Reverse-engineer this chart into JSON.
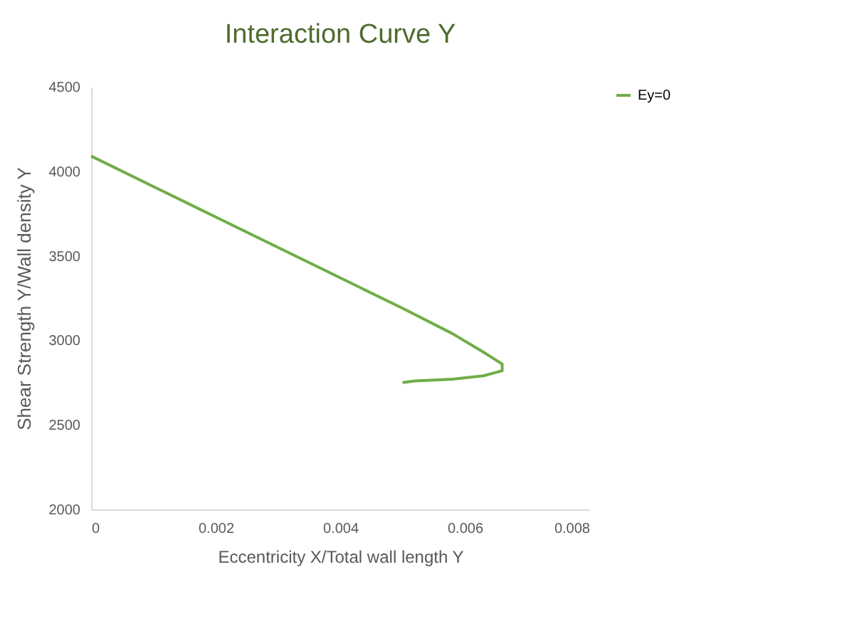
{
  "chart_data": {
    "type": "line",
    "title": "Interaction Curve Y",
    "xlabel": "Eccentricity X/Total wall length Y",
    "ylabel": "Shear Strength Y/Wall density  Y",
    "series": [
      {
        "name": "Ey=0",
        "color": "#70ad47",
        "x": [
          0,
          0.001,
          0.002,
          0.003,
          0.004,
          0.005,
          0.0058,
          0.0063,
          0.0066,
          0.0066,
          0.0063,
          0.0058,
          0.0052,
          0.005
        ],
        "values": [
          4090,
          3910,
          3730,
          3550,
          3370,
          3190,
          3040,
          2930,
          2860,
          2820,
          2790,
          2770,
          2760,
          2750
        ]
      }
    ],
    "xlim": [
      0,
      0.008
    ],
    "xticks": [
      0,
      0.002,
      0.004,
      0.006,
      0.008
    ],
    "ylim": [
      2000,
      4500
    ],
    "yticks": [
      2000,
      2500,
      3000,
      3500,
      4000,
      4500
    ],
    "grid": false,
    "legend": "right",
    "marker": "none",
    "line_style": "solid"
  }
}
